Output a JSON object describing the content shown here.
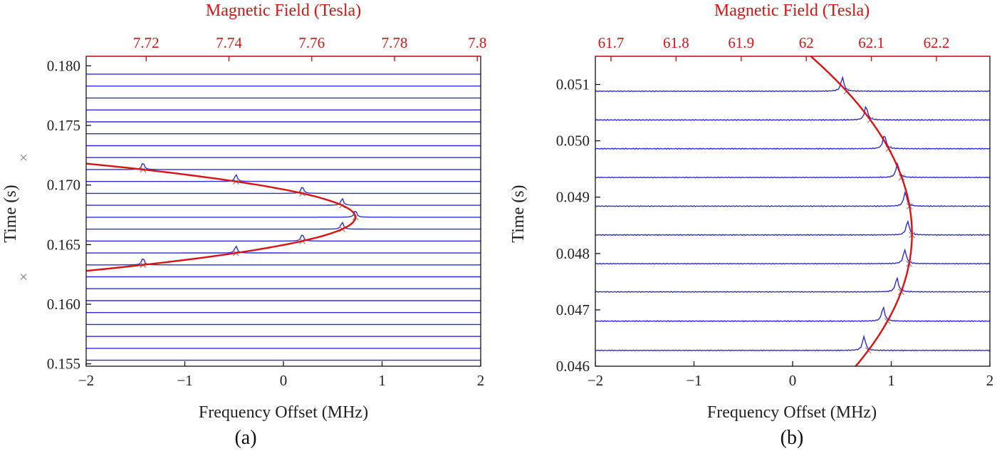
{
  "colors": {
    "trace": "#2b2be0",
    "fit": "#dd1111",
    "field_axis": "#dd1111",
    "frame": "#000000"
  },
  "chart_data": [
    {
      "type": "line",
      "panel_label": "(a)",
      "top_axis_label": "Magnetic Field (Tesla)",
      "top_ticks": [
        "7.72",
        "7.74",
        "7.76",
        "7.78",
        "7.8"
      ],
      "top_tick_values": [
        7.72,
        7.74,
        7.76,
        7.78,
        7.8
      ],
      "top_field_at_x_min": 7.7055,
      "top_field_per_MHz": 0.02383,
      "xlabel": "Frequency Offset (MHz)",
      "ylabel": "Time (s)",
      "xlim": [
        -2,
        2
      ],
      "ylim": [
        0.1548,
        0.1808
      ],
      "xticks": [
        "−2",
        "−1",
        "0",
        "1",
        "2"
      ],
      "xtick_values": [
        -2,
        -1,
        0,
        1,
        2
      ],
      "yticks": [
        "0.155",
        "0.160",
        "0.165",
        "0.170",
        "0.175",
        "0.180"
      ],
      "ytick_values": [
        0.155,
        0.16,
        0.165,
        0.17,
        0.175,
        0.18
      ],
      "fit_vertex": {
        "t": 0.1673,
        "f": 0.73
      },
      "fit_curvature": 1.0,
      "trace_times": [
        0.1553,
        0.1563,
        0.1573,
        0.1583,
        0.1593,
        0.1603,
        0.1613,
        0.1623,
        0.1633,
        0.1643,
        0.1653,
        0.1663,
        0.1673,
        0.1683,
        0.1693,
        0.1703,
        0.1713,
        0.1723,
        0.1733,
        0.1743,
        0.1753,
        0.1763,
        0.1773,
        0.1783,
        0.1793
      ],
      "trace_peak_height": 0.0006,
      "trace_peak_width": 0.025
    },
    {
      "type": "line",
      "panel_label": "(b)",
      "top_axis_label": "Magnetic Field (Tesla)",
      "top_ticks": [
        "61.7",
        "61.8",
        "61.9",
        "62",
        "62.1",
        "62.2"
      ],
      "top_tick_values": [
        61.7,
        61.8,
        61.9,
        62.0,
        62.1,
        62.2
      ],
      "top_field_at_x_min": 61.676,
      "top_field_per_MHz": 0.1515,
      "xlabel": "Frequency Offset (MHz)",
      "ylabel": "Time (s)",
      "xlim": [
        -2,
        2
      ],
      "ylim": [
        0.046,
        0.0515
      ],
      "xticks": [
        "−2",
        "−1",
        "0",
        "1",
        "2"
      ],
      "xtick_values": [
        -2,
        -1,
        0,
        1,
        2
      ],
      "yticks": [
        "0.046",
        "0.047",
        "0.048",
        "0.049",
        "0.050",
        "0.051"
      ],
      "ytick_values": [
        0.046,
        0.047,
        0.048,
        0.049,
        0.05,
        0.051
      ],
      "fit_vertex": {
        "t": 0.04835,
        "f": 1.21
      },
      "fit_curvature": 0.22,
      "trace_times": [
        0.04628,
        0.0468,
        0.04732,
        0.04782,
        0.04833,
        0.04884,
        0.04935,
        0.04986,
        0.05037,
        0.05088
      ],
      "trace_peak_height": 0.00025,
      "trace_peak_width": 0.03
    }
  ]
}
